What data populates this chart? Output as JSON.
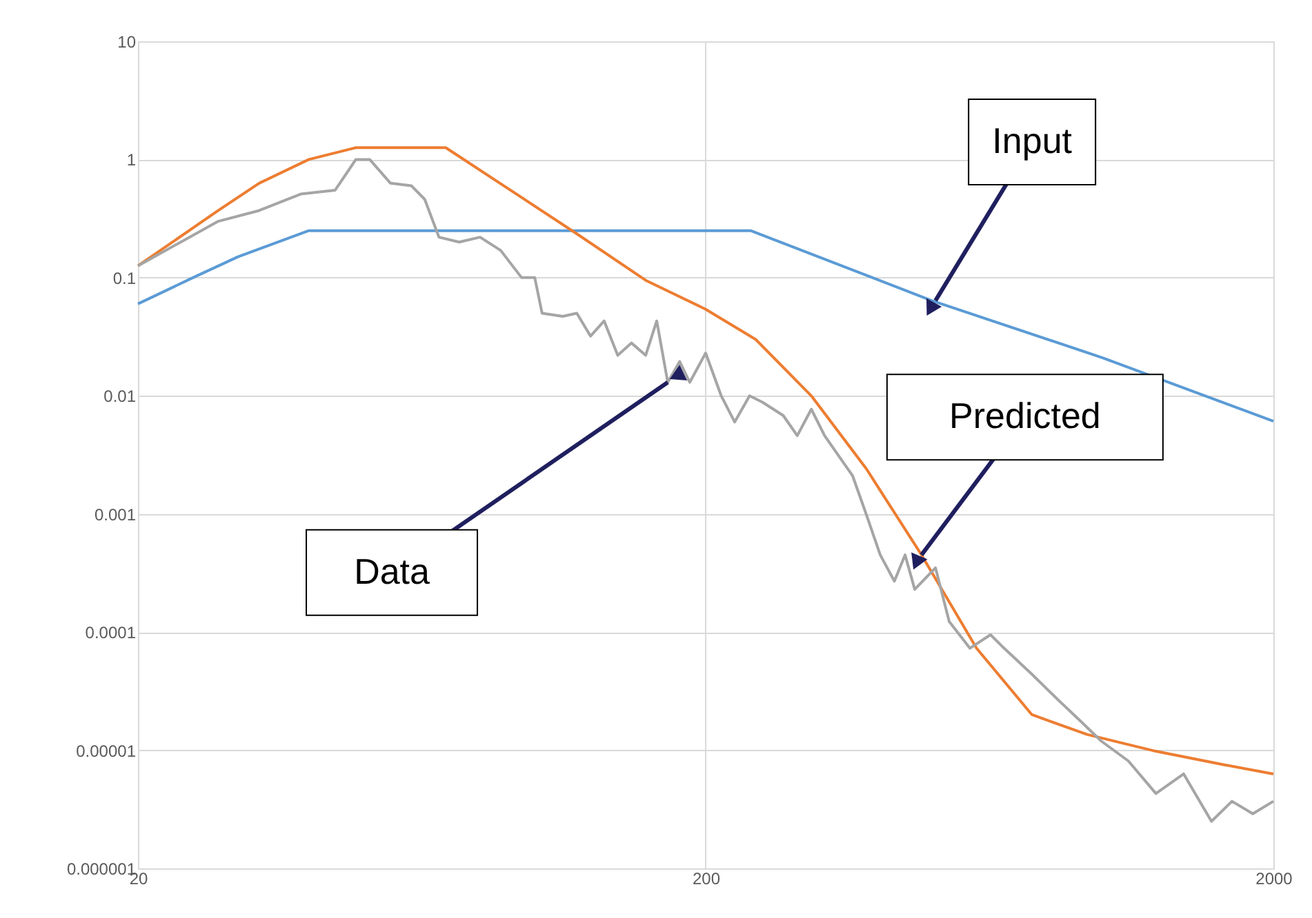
{
  "chart_data": {
    "type": "line",
    "log": "xy",
    "grid": true,
    "legend": false,
    "xlim": [
      20,
      2000
    ],
    "xticks": [
      20,
      200,
      2000
    ],
    "ylim": [
      1e-06,
      10
    ],
    "yticks": [
      {
        "value": 1e-06,
        "label": "0.000001"
      },
      {
        "value": 1e-05,
        "label": "0.00001"
      },
      0.0001,
      0.001,
      0.01,
      0.1,
      1,
      10
    ],
    "series": [
      {
        "color": "#5b9bd5",
        "x": [
          20,
          25,
          30,
          40,
          240,
          500,
          1000,
          2000
        ],
        "values": [
          0.06,
          0.1,
          0.15,
          0.25,
          0.25,
          0.064,
          0.021,
          0.0061
        ]
      },
      {
        "color": "#ed7d31",
        "x": [
          20,
          27.7,
          32.7,
          40,
          48.4,
          69.7,
          118.6,
          156.8,
          200,
          245,
          307,
          384,
          480,
          600,
          751,
          939,
          1242,
          1645,
          2000
        ],
        "values": [
          0.126,
          0.37,
          0.63,
          1.0,
          1.26,
          1.26,
          0.235,
          0.095,
          0.054,
          0.03,
          0.01,
          0.0024,
          0.00045,
          7.3e-05,
          2e-05,
          1.36e-05,
          9.8e-06,
          7.5e-06,
          6.3e-06
        ]
      },
      {
        "color": "#a5a5a5",
        "x": [
          20,
          27.7,
          32.7,
          38.7,
          44.5,
          48.4,
          51.2,
          55.7,
          60.6,
          64,
          67.8,
          73.6,
          80.1,
          87.1,
          94.8,
          100,
          103,
          112,
          118.6,
          125.4,
          132.5,
          140,
          148,
          156.8,
          164,
          171.5,
          180,
          187.5,
          200,
          213,
          225,
          239,
          252,
          274,
          290,
          307,
          324,
          343,
          363,
          384,
          406,
          430,
          449,
          467,
          508,
          537,
          584,
          635,
          671,
          751,
          840,
          914,
          994,
          1111,
          1242,
          1390,
          1556,
          1691,
          1840,
          2000
        ],
        "values": [
          0.126,
          0.3,
          0.37,
          0.51,
          0.55,
          1.0,
          1.0,
          0.63,
          0.6,
          0.46,
          0.22,
          0.2,
          0.22,
          0.17,
          0.1,
          0.1,
          0.05,
          0.047,
          0.05,
          0.032,
          0.043,
          0.022,
          0.028,
          0.022,
          0.043,
          0.013,
          0.0195,
          0.013,
          0.023,
          0.01,
          0.006,
          0.01,
          0.0088,
          0.0068,
          0.0046,
          0.0077,
          0.0046,
          0.0031,
          0.0021,
          0.00098,
          0.00045,
          0.00027,
          0.00045,
          0.00023,
          0.00035,
          0.000123,
          7.3e-05,
          9.5e-05,
          7.3e-05,
          4.4e-05,
          2.6e-05,
          1.77e-05,
          1.2e-05,
          8.1e-06,
          4.3e-06,
          6.3e-06,
          2.5e-06,
          3.7e-06,
          2.9e-06,
          3.7e-06
        ]
      }
    ],
    "annotations": [
      {
        "text": "Input",
        "x": 508,
        "y": 0.064
      },
      {
        "text": "Predicted",
        "x": 480,
        "y": 0.00045
      },
      {
        "text": "Data",
        "x": 171.5,
        "y": 0.013
      }
    ]
  }
}
